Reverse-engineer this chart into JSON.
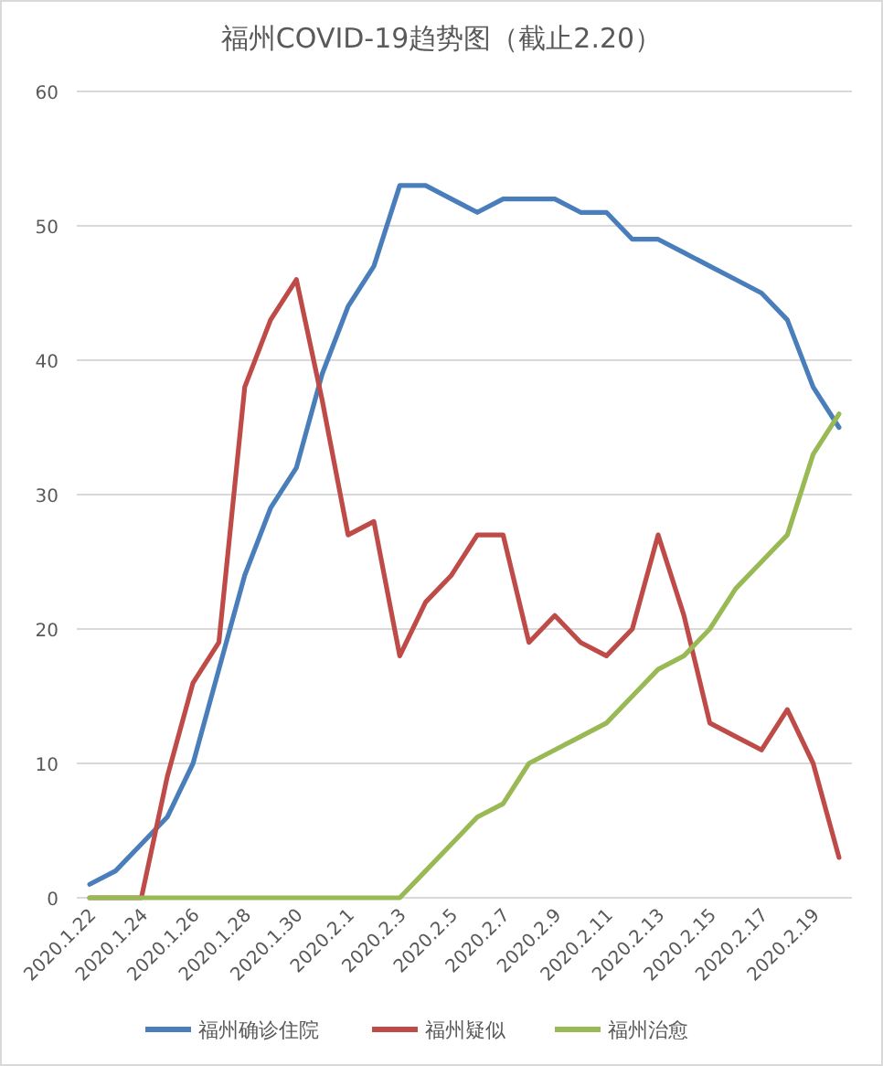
{
  "chart_data": {
    "type": "line",
    "title": "福州COVID-19趋势图（截止2.20）",
    "categories": [
      "2020.1.22",
      null,
      "2020.1.24",
      null,
      "2020.1.26",
      null,
      "2020.1.28",
      null,
      "2020.1.30",
      null,
      "2020.2.1",
      null,
      "2020.2.3",
      null,
      "2020.2.5",
      null,
      "2020.2.7",
      null,
      "2020.2.9",
      null,
      "2020.2.11",
      null,
      "2020.2.13",
      null,
      "2020.2.15",
      null,
      "2020.2.17",
      null,
      "2020.2.19",
      null
    ],
    "series": [
      {
        "name": "福州确诊住院",
        "color": "#4a7ebb",
        "values": [
          1,
          2,
          4,
          6,
          10,
          17,
          24,
          29,
          32,
          39,
          44,
          47,
          53,
          53,
          52,
          51,
          52,
          52,
          52,
          51,
          51,
          49,
          49,
          48,
          47,
          46,
          45,
          43,
          38,
          35
        ]
      },
      {
        "name": "福州疑似",
        "color": "#be4b48",
        "values": [
          0,
          0,
          0,
          9,
          16,
          19,
          38,
          43,
          46,
          37,
          27,
          28,
          18,
          22,
          24,
          27,
          27,
          19,
          21,
          19,
          18,
          20,
          27,
          21,
          13,
          12,
          11,
          14,
          10,
          3
        ]
      },
      {
        "name": "福州治愈",
        "color": "#98b954",
        "values": [
          0,
          0,
          0,
          0,
          0,
          0,
          0,
          0,
          0,
          0,
          0,
          0,
          0,
          2,
          4,
          6,
          7,
          10,
          11,
          12,
          13,
          15,
          17,
          18,
          20,
          23,
          25,
          27,
          33,
          36
        ]
      }
    ],
    "ylim": [
      0,
      60
    ],
    "yticks": [
      0,
      10,
      20,
      30,
      40,
      50,
      60
    ],
    "grid": "y",
    "legend": "bottom",
    "marker": "none",
    "line_style": "solid"
  }
}
